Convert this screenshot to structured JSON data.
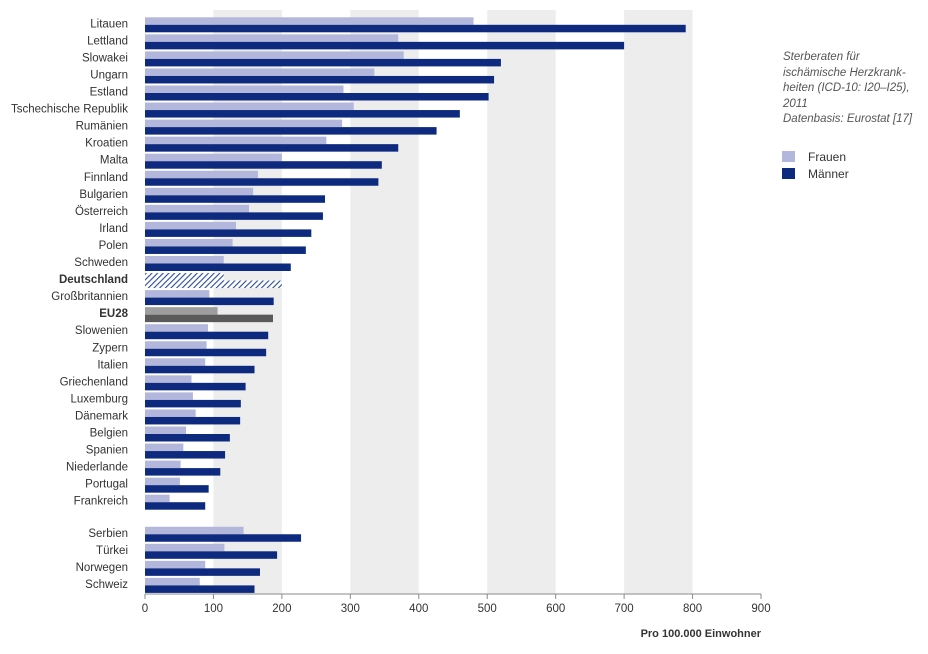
{
  "chart_data": {
    "type": "bar",
    "orientation": "horizontal",
    "categories": [
      "Litauen",
      "Lettland",
      "Slowakei",
      "Ungarn",
      "Estland",
      "Tschechische Republik",
      "Rumänien",
      "Kroatien",
      "Malta",
      "Finnland",
      "Bulgarien",
      "Österreich",
      "Irland",
      "Polen",
      "Schweden",
      "Deutschland",
      "Großbritannien",
      "EU28",
      "Slowenien",
      "Zypern",
      "Italien",
      "Griechenland",
      "Luxemburg",
      "Dänemark",
      "Belgien",
      "Spanien",
      "Niederlande",
      "Portugal",
      "Frankreich",
      "Serbien",
      "Türkei",
      "Norwegen",
      "Schweiz"
    ],
    "bold_categories": [
      "Deutschland",
      "EU28"
    ],
    "group_break_before": "Serbien",
    "series": [
      {
        "name": "Frauen",
        "color": "#b4b7dc",
        "values": [
          480,
          370,
          378,
          335,
          290,
          305,
          288,
          265,
          200,
          165,
          158,
          152,
          133,
          128,
          115,
          115,
          94,
          106,
          92,
          90,
          88,
          68,
          70,
          74,
          60,
          56,
          52,
          51,
          36,
          144,
          116,
          88,
          80
        ]
      },
      {
        "name": "Männer",
        "color": "#0e2a7e",
        "values": [
          790,
          700,
          520,
          510,
          502,
          460,
          426,
          370,
          346,
          341,
          263,
          260,
          243,
          235,
          213,
          200,
          188,
          187,
          180,
          177,
          160,
          147,
          140,
          139,
          124,
          117,
          110,
          93,
          88,
          228,
          193,
          168,
          160
        ]
      }
    ],
    "highlight_colors": {
      "Deutschland": "#2a4a9a",
      "EU28_frauen": "#9e9e9e",
      "EU28_maenner": "#5a5a5a"
    },
    "xlim": [
      0,
      900
    ],
    "x_ticks": [
      0,
      100,
      200,
      300,
      400,
      500,
      600,
      700,
      800,
      900
    ],
    "xlabel": "Pro 100.000 Einwohner",
    "grid": "alternating vertical bands",
    "legend_position": "right"
  },
  "side_text": {
    "caption": "Sterberaten für\nischämische Herzkrank-\nheiten (ICD-10: I20–I25),\n2011",
    "source": "Datenbasis: Eurostat [17]"
  },
  "legend": {
    "frauen": "Frauen",
    "maenner": "Männer"
  },
  "colors": {
    "band": "#ededed",
    "frauen": "#b4b7dc",
    "maenner": "#0e2a7e"
  }
}
